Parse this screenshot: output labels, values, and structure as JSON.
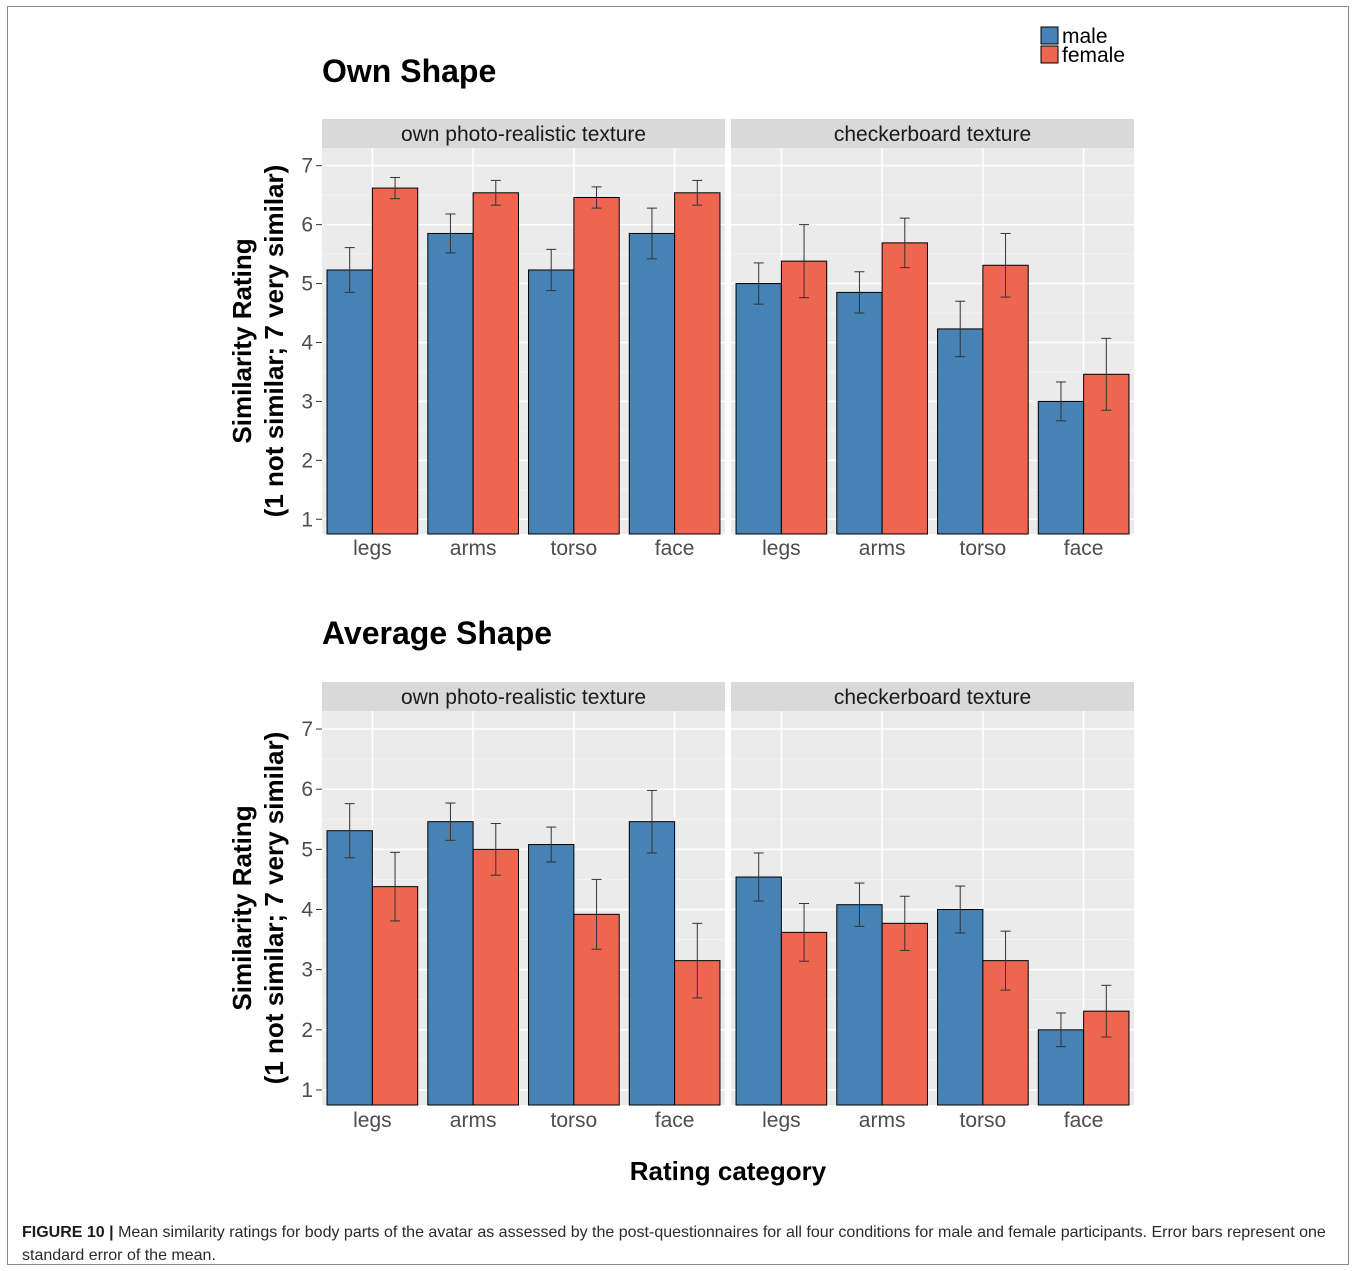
{
  "legend": {
    "male": "male",
    "female": "female"
  },
  "colors": {
    "male": "#4682B4",
    "female": "#EE6550",
    "panel_bg": "#EBEBEB",
    "strip_bg": "#D9D9D9",
    "grid": "#FFFFFF"
  },
  "x_axis_title": "Rating category",
  "caption": {
    "label": "FIGURE 10 |",
    "text": "Mean similarity ratings for body parts of the avatar as assessed by the post-questionnaires for all four conditions for male and female participants. Error bars represent one standard error of the mean."
  },
  "chart_data": [
    {
      "type": "bar",
      "title": "Own Shape",
      "ylabel": [
        "Similarity Rating",
        "(1 not similar; 7 very similar)"
      ],
      "ylim": [
        0.75,
        7.3
      ],
      "yticks": [
        1,
        2,
        3,
        4,
        5,
        6,
        7
      ],
      "grid": true,
      "legend_position": "top-right",
      "facets": [
        {
          "label": "own photo-realistic texture",
          "categories": [
            "legs",
            "arms",
            "torso",
            "face"
          ],
          "series": [
            {
              "name": "male",
              "values": [
                5.23,
                5.85,
                5.23,
                5.85
              ],
              "error": [
                0.38,
                0.33,
                0.35,
                0.43
              ]
            },
            {
              "name": "female",
              "values": [
                6.62,
                6.54,
                6.46,
                6.54
              ],
              "error": [
                0.18,
                0.21,
                0.18,
                0.21
              ]
            }
          ]
        },
        {
          "label": "checkerboard texture",
          "categories": [
            "legs",
            "arms",
            "torso",
            "face"
          ],
          "series": [
            {
              "name": "male",
              "values": [
                5.0,
                4.85,
                4.23,
                3.0
              ],
              "error": [
                0.35,
                0.35,
                0.47,
                0.33
              ]
            },
            {
              "name": "female",
              "values": [
                5.38,
                5.69,
                5.31,
                3.46
              ],
              "error": [
                0.62,
                0.42,
                0.54,
                0.61
              ]
            }
          ]
        }
      ]
    },
    {
      "type": "bar",
      "title": "Average Shape",
      "ylabel": [
        "Similarity Rating",
        "(1 not similar; 7 very similar)"
      ],
      "ylim": [
        0.75,
        7.3
      ],
      "yticks": [
        1,
        2,
        3,
        4,
        5,
        6,
        7
      ],
      "grid": true,
      "facets": [
        {
          "label": "own photo-realistic texture",
          "categories": [
            "legs",
            "arms",
            "torso",
            "face"
          ],
          "series": [
            {
              "name": "male",
              "values": [
                5.31,
                5.46,
                5.08,
                5.46
              ],
              "error": [
                0.45,
                0.31,
                0.29,
                0.52
              ]
            },
            {
              "name": "female",
              "values": [
                4.38,
                5.0,
                3.92,
                3.15
              ],
              "error": [
                0.57,
                0.43,
                0.58,
                0.62
              ]
            }
          ]
        },
        {
          "label": "checkerboard texture",
          "categories": [
            "legs",
            "arms",
            "torso",
            "face"
          ],
          "series": [
            {
              "name": "male",
              "values": [
                4.54,
                4.08,
                4.0,
                2.0
              ],
              "error": [
                0.4,
                0.36,
                0.39,
                0.28
              ]
            },
            {
              "name": "female",
              "values": [
                3.62,
                3.77,
                3.15,
                2.31
              ],
              "error": [
                0.48,
                0.45,
                0.49,
                0.43
              ]
            }
          ]
        }
      ]
    }
  ]
}
